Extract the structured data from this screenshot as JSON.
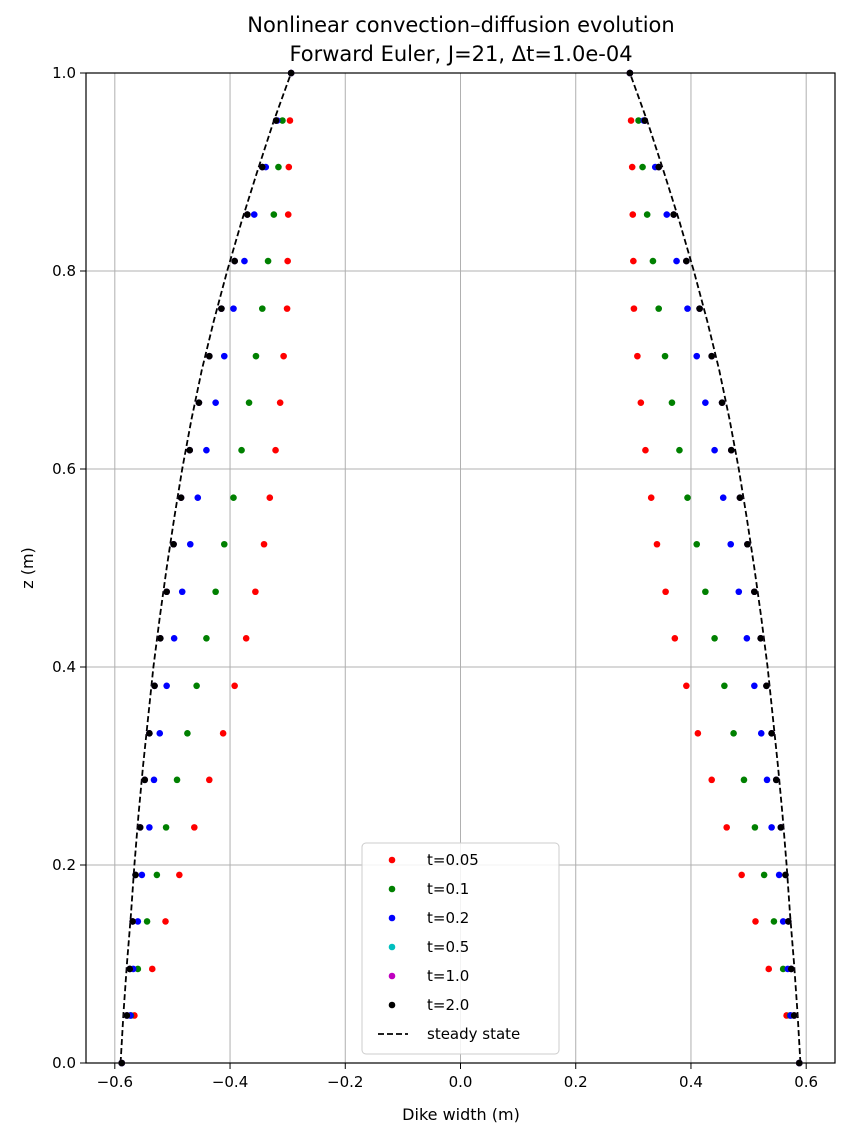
{
  "chart_data": {
    "type": "scatter",
    "title": "Nonlinear convection–diffusion evolution",
    "subtitle": "Forward Euler, J=21, Δt=1.0e-04",
    "xlabel": "Dike width (m)",
    "ylabel": "z (m)",
    "xlim": [
      -0.65,
      0.65
    ],
    "ylim": [
      0.0,
      1.0
    ],
    "grid": true,
    "legend_position": "lower-center",
    "x_ticks": [
      {
        "value": -0.6,
        "label": "−0.6"
      },
      {
        "value": -0.4,
        "label": "−0.4"
      },
      {
        "value": -0.2,
        "label": "−0.2"
      },
      {
        "value": 0.0,
        "label": "0.0"
      },
      {
        "value": 0.2,
        "label": "0.2"
      },
      {
        "value": 0.4,
        "label": "0.4"
      },
      {
        "value": 0.6,
        "label": "0.6"
      }
    ],
    "y_ticks": [
      {
        "value": 0.0,
        "label": "0.0"
      },
      {
        "value": 0.2,
        "label": "0.2"
      },
      {
        "value": 0.4,
        "label": "0.4"
      },
      {
        "value": 0.6,
        "label": "0.6"
      },
      {
        "value": 0.8,
        "label": "0.8"
      },
      {
        "value": 1.0,
        "label": "1.0"
      }
    ],
    "z": [
      0.0,
      0.048,
      0.095,
      0.143,
      0.19,
      0.238,
      0.286,
      0.333,
      0.381,
      0.429,
      0.476,
      0.524,
      0.571,
      0.619,
      0.667,
      0.714,
      0.762,
      0.81,
      0.857,
      0.905,
      0.952,
      1.0
    ],
    "series": [
      {
        "name": "t=0.05",
        "color": "#ff0000",
        "width": [
          0.588,
          0.566,
          0.535,
          0.512,
          0.488,
          0.462,
          0.436,
          0.412,
          0.392,
          0.372,
          0.356,
          0.341,
          0.331,
          0.321,
          0.313,
          0.307,
          0.301,
          0.3,
          0.299,
          0.298,
          0.296,
          0.294
        ]
      },
      {
        "name": "t=0.1",
        "color": "#008000",
        "width": [
          0.588,
          0.572,
          0.56,
          0.544,
          0.527,
          0.511,
          0.492,
          0.474,
          0.458,
          0.441,
          0.425,
          0.41,
          0.394,
          0.38,
          0.367,
          0.355,
          0.344,
          0.334,
          0.324,
          0.316,
          0.309,
          0.294
        ]
      },
      {
        "name": "t=0.2",
        "color": "#0000ff",
        "width": [
          0.588,
          0.573,
          0.568,
          0.56,
          0.553,
          0.54,
          0.532,
          0.522,
          0.51,
          0.497,
          0.483,
          0.469,
          0.456,
          0.441,
          0.425,
          0.41,
          0.394,
          0.375,
          0.358,
          0.338,
          0.318,
          0.294
        ]
      },
      {
        "name": "t=0.5",
        "color": "#00bfbf",
        "width": [
          0.588,
          0.579,
          0.574,
          0.569,
          0.564,
          0.556,
          0.548,
          0.54,
          0.531,
          0.521,
          0.51,
          0.498,
          0.485,
          0.47,
          0.454,
          0.436,
          0.415,
          0.392,
          0.37,
          0.344,
          0.32,
          0.294
        ]
      },
      {
        "name": "t=1.0",
        "color": "#bf00bf",
        "width": [
          0.588,
          0.579,
          0.574,
          0.569,
          0.564,
          0.556,
          0.548,
          0.54,
          0.531,
          0.521,
          0.51,
          0.498,
          0.485,
          0.47,
          0.454,
          0.436,
          0.415,
          0.392,
          0.37,
          0.344,
          0.32,
          0.294
        ]
      },
      {
        "name": "t=2.0",
        "color": "#000000",
        "width": [
          0.588,
          0.579,
          0.574,
          0.569,
          0.564,
          0.556,
          0.548,
          0.54,
          0.531,
          0.521,
          0.51,
          0.498,
          0.485,
          0.47,
          0.454,
          0.436,
          0.415,
          0.392,
          0.37,
          0.344,
          0.32,
          0.294
        ]
      }
    ],
    "steady_state": {
      "name": "steady state",
      "color": "#000000",
      "style": "dashed",
      "z": [
        0.0,
        0.05,
        0.1,
        0.15,
        0.2,
        0.25,
        0.3,
        0.35,
        0.4,
        0.45,
        0.5,
        0.55,
        0.6,
        0.65,
        0.7,
        0.75,
        0.8,
        0.85,
        0.9,
        0.95,
        1.0
      ],
      "width": [
        0.59,
        0.585,
        0.579,
        0.572,
        0.566,
        0.559,
        0.551,
        0.542,
        0.533,
        0.522,
        0.51,
        0.497,
        0.483,
        0.467,
        0.449,
        0.428,
        0.405,
        0.38,
        0.353,
        0.325,
        0.294
      ]
    }
  }
}
